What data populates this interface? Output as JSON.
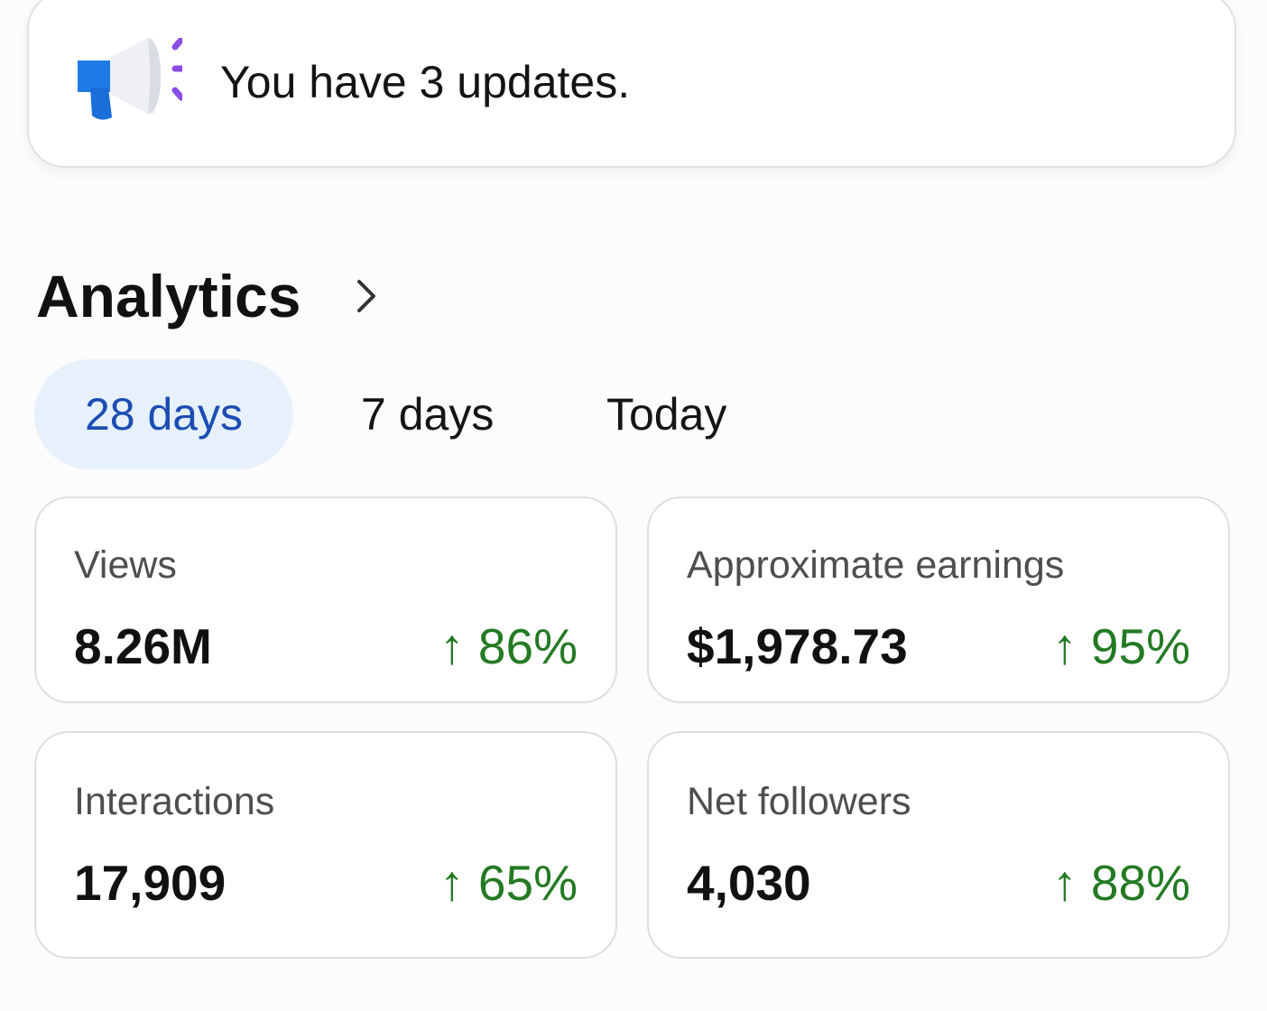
{
  "notification": {
    "text": "You have 3 updates."
  },
  "section": {
    "title": "Analytics"
  },
  "tabs": [
    "28 days",
    "7 days",
    "Today"
  ],
  "cards": [
    {
      "label": "Views",
      "value": "8.26M",
      "change": "↑ 86%"
    },
    {
      "label": "Approximate earnings",
      "value": "$1,978.73",
      "change": "↑ 95%"
    },
    {
      "label": "Interactions",
      "value": "17,909",
      "change": "↑ 65%"
    },
    {
      "label": "Net followers",
      "value": "4,030",
      "change": "↑ 88%"
    }
  ]
}
